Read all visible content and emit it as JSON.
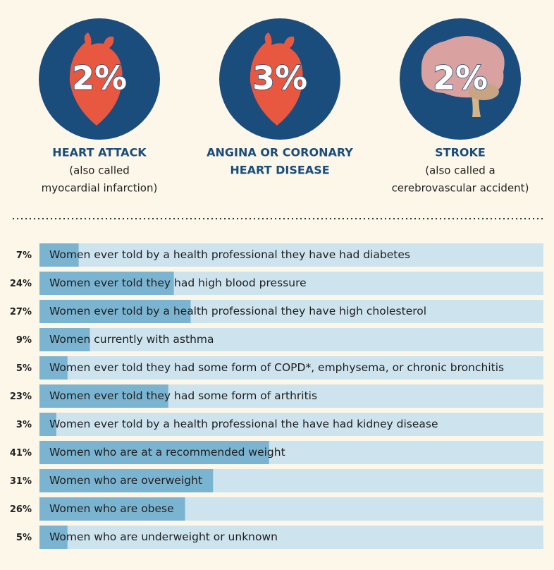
{
  "stats": [
    {
      "value_label": "2%",
      "title": [
        "HEART ATTACK"
      ],
      "note": [
        "(also called",
        "myocardial infarction)"
      ]
    },
    {
      "value_label": "3%",
      "title": [
        "ANGINA OR CORONARY",
        "HEART DISEASE"
      ],
      "note": []
    },
    {
      "value_label": "2%",
      "title": [
        "STROKE"
      ],
      "note": [
        "(also called a",
        "cerebrovascular accident)"
      ]
    }
  ],
  "chart_data": {
    "type": "bar",
    "orientation": "horizontal",
    "categories": [
      "Women ever told by a health professional they have had diabetes",
      "Women ever told they had high blood pressure",
      "Women ever told by a health professional they have high cholesterol",
      "Women currently with asthma",
      "Women ever told they had some form of COPD*, emphysema, or chronic bronchitis",
      "Women ever told they had some form of arthritis",
      "Women ever told by a health professional the have had kidney disease",
      "Women who are at a recommended weight",
      "Women who are overweight",
      "Women who are obese",
      "Women who are underweight or unknown"
    ],
    "values": [
      7,
      24,
      27,
      9,
      5,
      23,
      3,
      41,
      31,
      26,
      5
    ],
    "value_labels": [
      "7%",
      "24%",
      "27%",
      "9%",
      "5%",
      "23%",
      "3%",
      "41%",
      "31%",
      "26%",
      "5%"
    ],
    "color": "#7bb4d0",
    "track_color": "#cde3ee",
    "xlim": [
      0,
      90
    ]
  }
}
